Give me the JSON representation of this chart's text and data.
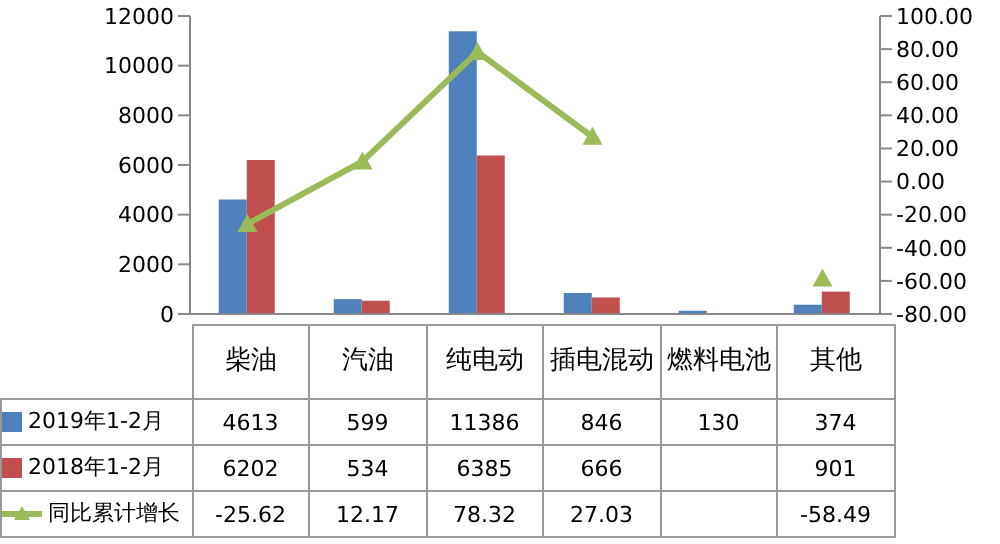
{
  "chart_data": {
    "type": "bar",
    "categories": [
      "柴油",
      "汽油",
      "纯电动",
      "插电混动",
      "燃料电池",
      "其他"
    ],
    "series": [
      {
        "name": "2019年1-2月",
        "color": "#4f81bd",
        "values": [
          4613,
          599,
          11386,
          846,
          130,
          374
        ]
      },
      {
        "name": "2018年1-2月",
        "color": "#c0504d",
        "values": [
          6202,
          534,
          6385,
          666,
          null,
          901
        ]
      },
      {
        "name": "同比累计增长",
        "type": "line",
        "axis": "y2",
        "color": "#9bbb59",
        "marker": "triangle",
        "values": [
          -25.62,
          12.17,
          78.32,
          27.03,
          null,
          -58.49
        ]
      }
    ],
    "ylim": [
      0,
      12000
    ],
    "yticks": [
      0,
      2000,
      4000,
      6000,
      8000,
      10000,
      12000
    ],
    "y2lim": [
      -80,
      100
    ],
    "y2ticks": [
      {
        "value": -80,
        "label": "-80.00"
      },
      {
        "value": -60,
        "label": "-60.00"
      },
      {
        "value": -40,
        "label": "-40.00"
      },
      {
        "value": -20,
        "label": "-20.00"
      },
      {
        "value": 0,
        "label": "0.00"
      },
      {
        "value": 20,
        "label": "20.00"
      },
      {
        "value": 40,
        "label": "40.00"
      },
      {
        "value": 60,
        "label": "60.00"
      },
      {
        "value": 80,
        "label": "80.00"
      },
      {
        "value": 100,
        "label": "100.00"
      }
    ],
    "data_labels": true,
    "legend": "bottom",
    "grid": false
  }
}
